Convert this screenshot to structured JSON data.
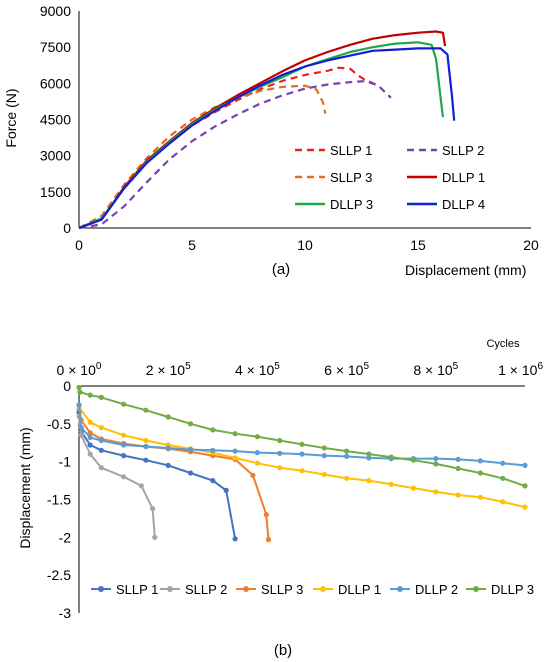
{
  "chart_data": [
    {
      "type": "line",
      "caption": "(a)",
      "xlabel": "Displacement (mm)",
      "ylabel": "Force (N)",
      "xlim": [
        0,
        20
      ],
      "ylim": [
        0,
        9000
      ],
      "xticks": [
        "0",
        "5",
        "10",
        "15",
        "20"
      ],
      "yticks": [
        "0",
        "1500",
        "3000",
        "4500",
        "6000",
        "7500",
        "9000"
      ],
      "grid": false,
      "legend": "lower-right inside plot, 3 rows x 2 columns",
      "series": [
        {
          "name": "SLLP 1",
          "color": "#e8222a",
          "dash": "dashed",
          "points": [
            [
              0,
              0
            ],
            [
              1,
              450
            ],
            [
              2,
              1650
            ],
            [
              3,
              2700
            ],
            [
              4,
              3550
            ],
            [
              5,
              4250
            ],
            [
              6,
              4800
            ],
            [
              7,
              5300
            ],
            [
              8,
              5750
            ],
            [
              9,
              6100
            ],
            [
              10,
              6350
            ],
            [
              11,
              6520
            ],
            [
              11.5,
              6650
            ],
            [
              12,
              6600
            ],
            [
              12.4,
              6300
            ],
            [
              12.8,
              6050
            ],
            [
              13.3,
              5900
            ]
          ]
        },
        {
          "name": "SLLP 2",
          "color": "#7b3fb0",
          "dash": "dashed",
          "points": [
            [
              0,
              0
            ],
            [
              1,
              150
            ],
            [
              2,
              900
            ],
            [
              3,
              1900
            ],
            [
              4,
              2850
            ],
            [
              5,
              3600
            ],
            [
              6,
              4200
            ],
            [
              7,
              4700
            ],
            [
              8,
              5150
            ],
            [
              9,
              5500
            ],
            [
              10,
              5780
            ],
            [
              11,
              5950
            ],
            [
              12,
              6050
            ],
            [
              12.8,
              6100
            ],
            [
              13.3,
              5850
            ],
            [
              13.8,
              5400
            ]
          ]
        },
        {
          "name": "SLLP 3",
          "color": "#e36b1a",
          "dash": "dashed",
          "points": [
            [
              0,
              0
            ],
            [
              1,
              500
            ],
            [
              2,
              1800
            ],
            [
              3,
              2900
            ],
            [
              4,
              3800
            ],
            [
              5,
              4500
            ],
            [
              6,
              5000
            ],
            [
              7,
              5400
            ],
            [
              8,
              5680
            ],
            [
              9,
              5850
            ],
            [
              10,
              5900
            ],
            [
              10.5,
              5750
            ],
            [
              10.8,
              5200
            ],
            [
              10.9,
              4750
            ]
          ]
        },
        {
          "name": "DLLP 1",
          "color": "#c00000",
          "dash": "solid",
          "points": [
            [
              0,
              0
            ],
            [
              1,
              350
            ],
            [
              2,
              1700
            ],
            [
              3,
              2800
            ],
            [
              4,
              3600
            ],
            [
              5,
              4350
            ],
            [
              6,
              4950
            ],
            [
              7,
              5500
            ],
            [
              8,
              6000
            ],
            [
              9,
              6500
            ],
            [
              10,
              6950
            ],
            [
              11,
              7300
            ],
            [
              12,
              7600
            ],
            [
              13,
              7850
            ],
            [
              14,
              8000
            ],
            [
              15,
              8100
            ],
            [
              15.8,
              8150
            ],
            [
              16.1,
              8100
            ],
            [
              16.2,
              7550
            ]
          ]
        },
        {
          "name": "DLLP 3",
          "color": "#1fa84a",
          "dash": "solid",
          "points": [
            [
              0,
              0
            ],
            [
              1,
              400
            ],
            [
              2,
              1650
            ],
            [
              3,
              2750
            ],
            [
              4,
              3550
            ],
            [
              5,
              4300
            ],
            [
              6,
              4900
            ],
            [
              7,
              5400
            ],
            [
              8,
              5850
            ],
            [
              9,
              6250
            ],
            [
              10,
              6700
            ],
            [
              11,
              7000
            ],
            [
              12,
              7300
            ],
            [
              13,
              7500
            ],
            [
              14,
              7650
            ],
            [
              15,
              7700
            ],
            [
              15.6,
              7600
            ],
            [
              15.8,
              7000
            ],
            [
              16.1,
              4600
            ]
          ]
        },
        {
          "name": "DLLP 4",
          "color": "#0f1fd6",
          "dash": "solid",
          "points": [
            [
              0,
              0
            ],
            [
              1,
              350
            ],
            [
              2,
              1650
            ],
            [
              3,
              2700
            ],
            [
              4,
              3500
            ],
            [
              5,
              4250
            ],
            [
              6,
              4850
            ],
            [
              7,
              5400
            ],
            [
              8,
              5900
            ],
            [
              9,
              6350
            ],
            [
              10,
              6700
            ],
            [
              11,
              6950
            ],
            [
              12,
              7150
            ],
            [
              13,
              7350
            ],
            [
              14,
              7400
            ],
            [
              15,
              7450
            ],
            [
              16,
              7450
            ],
            [
              16.3,
              7200
            ],
            [
              16.5,
              5500
            ],
            [
              16.6,
              4450
            ]
          ]
        }
      ]
    },
    {
      "type": "line",
      "caption": "(b)",
      "xlabel": "Cycles",
      "ylabel": "Displacement (mm)",
      "xlim": [
        0,
        1000000
      ],
      "ylim": [
        -3,
        0
      ],
      "x_axis_position": "top",
      "xticks": [
        {
          "mant": "0",
          "exp": "0"
        },
        {
          "mant": "2",
          "exp": "5"
        },
        {
          "mant": "4",
          "exp": "5"
        },
        {
          "mant": "6",
          "exp": "5"
        },
        {
          "mant": "8",
          "exp": "5"
        },
        {
          "mant": "1",
          "exp": "6"
        }
      ],
      "xtick_times": "× 10",
      "yticks": [
        "0",
        "-0.5",
        "-1",
        "-1.5",
        "-2",
        "-2.5",
        "-3"
      ],
      "grid": false,
      "legend": "bottom inside plot, single row",
      "series": [
        {
          "name": "SLLP 1",
          "color": "#4472c4",
          "marker": "circle",
          "points": [
            [
              0,
              -0.35
            ],
            [
              5000,
              -0.6
            ],
            [
              25000,
              -0.78
            ],
            [
              50000,
              -0.85
            ],
            [
              100000,
              -0.92
            ],
            [
              150000,
              -0.98
            ],
            [
              200000,
              -1.05
            ],
            [
              250000,
              -1.15
            ],
            [
              300000,
              -1.25
            ],
            [
              330000,
              -1.38
            ],
            [
              350000,
              -2.02
            ]
          ]
        },
        {
          "name": "SLLP 2",
          "color": "#a5a5a5",
          "marker": "circle",
          "points": [
            [
              0,
              -0.4
            ],
            [
              5000,
              -0.65
            ],
            [
              25000,
              -0.9
            ],
            [
              50000,
              -1.08
            ],
            [
              100000,
              -1.2
            ],
            [
              140000,
              -1.32
            ],
            [
              165000,
              -1.62
            ],
            [
              170000,
              -2.0
            ]
          ]
        },
        {
          "name": "SLLP 3",
          "color": "#ed7d31",
          "marker": "circle",
          "points": [
            [
              0,
              -0.3
            ],
            [
              5000,
              -0.45
            ],
            [
              25000,
              -0.62
            ],
            [
              50000,
              -0.7
            ],
            [
              100000,
              -0.76
            ],
            [
              150000,
              -0.8
            ],
            [
              200000,
              -0.83
            ],
            [
              250000,
              -0.87
            ],
            [
              300000,
              -0.92
            ],
            [
              350000,
              -0.97
            ],
            [
              390000,
              -1.18
            ],
            [
              420000,
              -1.7
            ],
            [
              425000,
              -2.03
            ]
          ]
        },
        {
          "name": "DLLP 1",
          "color": "#ffc000",
          "marker": "circle",
          "points": [
            [
              0,
              -0.28
            ],
            [
              25000,
              -0.48
            ],
            [
              50000,
              -0.55
            ],
            [
              100000,
              -0.65
            ],
            [
              150000,
              -0.72
            ],
            [
              200000,
              -0.78
            ],
            [
              250000,
              -0.83
            ],
            [
              300000,
              -0.88
            ],
            [
              350000,
              -0.95
            ],
            [
              400000,
              -1.02
            ],
            [
              450000,
              -1.08
            ],
            [
              500000,
              -1.12
            ],
            [
              550000,
              -1.17
            ],
            [
              600000,
              -1.22
            ],
            [
              650000,
              -1.25
            ],
            [
              700000,
              -1.3
            ],
            [
              750000,
              -1.35
            ],
            [
              800000,
              -1.4
            ],
            [
              850000,
              -1.44
            ],
            [
              900000,
              -1.47
            ],
            [
              950000,
              -1.53
            ],
            [
              1000000,
              -1.6
            ]
          ]
        },
        {
          "name": "DLLP 2",
          "color": "#5b9bd5",
          "marker": "circle",
          "points": [
            [
              0,
              -0.25
            ],
            [
              5000,
              -0.55
            ],
            [
              25000,
              -0.68
            ],
            [
              50000,
              -0.72
            ],
            [
              100000,
              -0.78
            ],
            [
              150000,
              -0.8
            ],
            [
              200000,
              -0.82
            ],
            [
              250000,
              -0.84
            ],
            [
              300000,
              -0.85
            ],
            [
              350000,
              -0.86
            ],
            [
              400000,
              -0.88
            ],
            [
              450000,
              -0.89
            ],
            [
              500000,
              -0.9
            ],
            [
              550000,
              -0.92
            ],
            [
              600000,
              -0.93
            ],
            [
              650000,
              -0.95
            ],
            [
              700000,
              -0.96
            ],
            [
              750000,
              -0.96
            ],
            [
              800000,
              -0.96
            ],
            [
              850000,
              -0.97
            ],
            [
              900000,
              -0.99
            ],
            [
              950000,
              -1.02
            ],
            [
              1000000,
              -1.05
            ]
          ]
        },
        {
          "name": "DLLP 3",
          "color": "#70ad47",
          "marker": "circle",
          "points": [
            [
              0,
              -0.02
            ],
            [
              2000,
              -0.08
            ],
            [
              25000,
              -0.12
            ],
            [
              50000,
              -0.15
            ],
            [
              100000,
              -0.24
            ],
            [
              150000,
              -0.32
            ],
            [
              200000,
              -0.41
            ],
            [
              250000,
              -0.5
            ],
            [
              300000,
              -0.58
            ],
            [
              350000,
              -0.63
            ],
            [
              400000,
              -0.67
            ],
            [
              450000,
              -0.72
            ],
            [
              500000,
              -0.77
            ],
            [
              550000,
              -0.82
            ],
            [
              600000,
              -0.86
            ],
            [
              650000,
              -0.9
            ],
            [
              700000,
              -0.94
            ],
            [
              750000,
              -0.98
            ],
            [
              800000,
              -1.03
            ],
            [
              850000,
              -1.09
            ],
            [
              900000,
              -1.15
            ],
            [
              950000,
              -1.22
            ],
            [
              1000000,
              -1.32
            ]
          ]
        }
      ]
    }
  ]
}
